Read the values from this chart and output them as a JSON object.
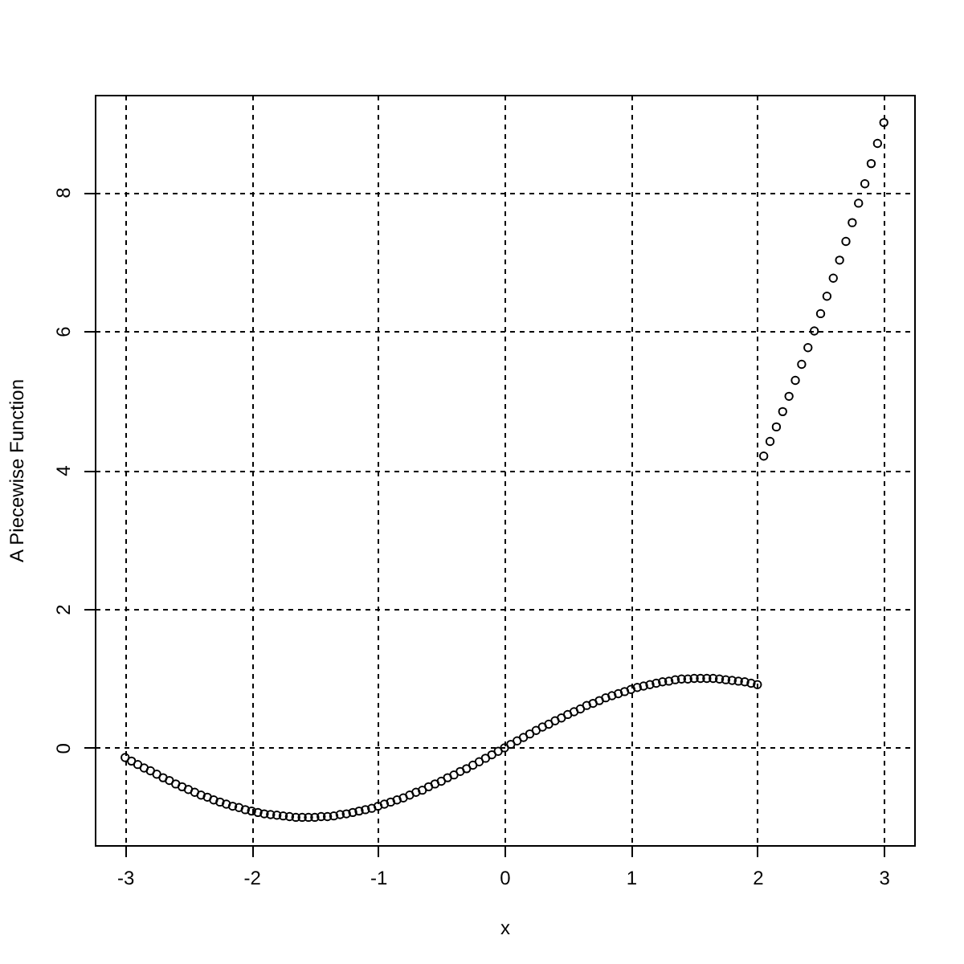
{
  "chart_data": {
    "type": "scatter",
    "xlabel": "x",
    "ylabel": "A Piecewise Function",
    "x": [
      -3,
      -2.95,
      -2.9,
      -2.85,
      -2.8,
      -2.75,
      -2.7,
      -2.65,
      -2.6,
      -2.55,
      -2.5,
      -2.45,
      -2.4,
      -2.35,
      -2.3,
      -2.25,
      -2.2,
      -2.15,
      -2.1,
      -2.05,
      -2,
      -1.95,
      -1.9,
      -1.85,
      -1.8,
      -1.75,
      -1.7,
      -1.65,
      -1.6,
      -1.55,
      -1.5,
      -1.45,
      -1.4,
      -1.35,
      -1.3,
      -1.25,
      -1.2,
      -1.15,
      -1.1,
      -1.05,
      -1,
      -0.95,
      -0.9,
      -0.85,
      -0.8,
      -0.75,
      -0.7,
      -0.65,
      -0.6,
      -0.55,
      -0.5,
      -0.45,
      -0.4,
      -0.35,
      -0.3,
      -0.25,
      -0.2,
      -0.15,
      -0.1,
      -0.05,
      0,
      0.05,
      0.1,
      0.15,
      0.2,
      0.25,
      0.3,
      0.35,
      0.4,
      0.45,
      0.5,
      0.55,
      0.6,
      0.65,
      0.7,
      0.75,
      0.8,
      0.85,
      0.9,
      0.95,
      1,
      1.05,
      1.1,
      1.15,
      1.2,
      1.25,
      1.3,
      1.35,
      1.4,
      1.45,
      1.5,
      1.55,
      1.6,
      1.65,
      1.7,
      1.75,
      1.8,
      1.85,
      1.9,
      1.95,
      2,
      2.05,
      2.1,
      2.15,
      2.2,
      2.25,
      2.3,
      2.35,
      2.4,
      2.45,
      2.5,
      2.55,
      2.6,
      2.65,
      2.7,
      2.75,
      2.8,
      2.85,
      2.9,
      2.95,
      3
    ],
    "series": [
      {
        "color": "#000000",
        "values": [
          -0.14,
          -0.19,
          -0.24,
          -0.29,
          -0.33,
          -0.38,
          -0.43,
          -0.47,
          -0.52,
          -0.56,
          -0.6,
          -0.64,
          -0.68,
          -0.71,
          -0.75,
          -0.78,
          -0.81,
          -0.84,
          -0.86,
          -0.89,
          -0.91,
          -0.93,
          -0.95,
          -0.96,
          -0.97,
          -0.98,
          -0.99,
          -1.0,
          -1.0,
          -1.0,
          -1.0,
          -0.99,
          -0.99,
          -0.98,
          -0.96,
          -0.95,
          -0.93,
          -0.91,
          -0.89,
          -0.87,
          -0.84,
          -0.81,
          -0.78,
          -0.75,
          -0.72,
          -0.68,
          -0.64,
          -0.61,
          -0.56,
          -0.52,
          -0.48,
          -0.43,
          -0.39,
          -0.34,
          -0.3,
          -0.25,
          -0.2,
          -0.15,
          -0.1,
          -0.05,
          0,
          0.05,
          0.1,
          0.15,
          0.2,
          0.25,
          0.3,
          0.34,
          0.39,
          0.43,
          0.48,
          0.52,
          0.56,
          0.61,
          0.64,
          0.68,
          0.72,
          0.75,
          0.78,
          0.81,
          0.84,
          0.87,
          0.89,
          0.91,
          0.93,
          0.95,
          0.96,
          0.98,
          0.99,
          0.99,
          1.0,
          1.0,
          1.0,
          1.0,
          0.99,
          0.98,
          0.97,
          0.96,
          0.95,
          0.93,
          0.91,
          4.2,
          4.41,
          4.62,
          4.84,
          5.06,
          5.29,
          5.52,
          5.76,
          6.0,
          6.25,
          6.5,
          6.76,
          7.02,
          7.29,
          7.56,
          7.84,
          8.12,
          8.41,
          8.7,
          9.0
        ]
      }
    ],
    "xlim": [
      -3.24,
      3.24
    ],
    "ylim": [
      -1.4,
      9.4
    ],
    "xticks": [
      -3,
      -2,
      -1,
      0,
      1,
      2,
      3
    ],
    "yticks": [
      0,
      2,
      4,
      6,
      8
    ],
    "grid": true,
    "marker": "circle"
  }
}
